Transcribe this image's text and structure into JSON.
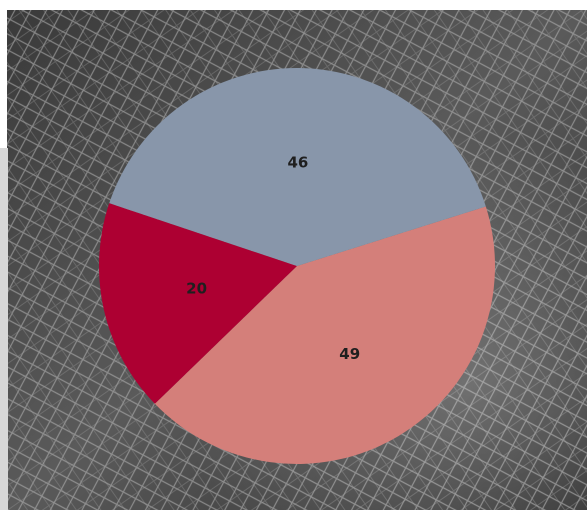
{
  "chart_data": {
    "type": "pie",
    "title": "",
    "slices": [
      {
        "label": "",
        "value": 49,
        "display": "49",
        "color": "#d47f7a"
      },
      {
        "label": "",
        "value": 20,
        "display": "20",
        "color": "#ad0032"
      },
      {
        "label": "",
        "value": 46,
        "display": "46",
        "color": "#8896aa"
      }
    ],
    "start_angle_deg": -17.5,
    "direction": "clockwise",
    "legend": "none",
    "background": "wire-mesh-photo"
  }
}
